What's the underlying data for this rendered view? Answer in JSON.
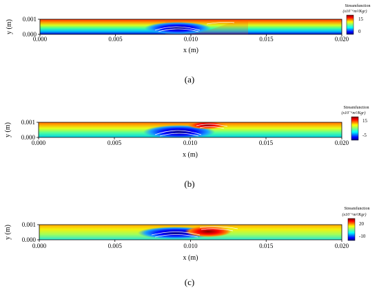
{
  "figure": {
    "panels": [
      {
        "caption": "(a)",
        "xlabel": "x (m)",
        "ylabel": "y (m)",
        "xticks": [
          "0.000",
          "0.005",
          "0.010",
          "0.015",
          "0.020"
        ],
        "yticks": [
          "0.000",
          "0.001"
        ],
        "colorbar": {
          "title": "Streamfunction",
          "units": "(x10⁻⁶m²/Kgr)",
          "ticks": [
            "15",
            "0"
          ]
        }
      },
      {
        "caption": "(b)",
        "xlabel": "x (m)",
        "ylabel": "y (m)",
        "xticks": [
          "0.000",
          "0.005",
          "0.010",
          "0.015",
          "0.020"
        ],
        "yticks": [
          "0.000",
          "0.001"
        ],
        "colorbar": {
          "title": "Streamfunction",
          "units": "(x10⁻⁶m²/Kgr)",
          "ticks": [
            "15",
            "-5"
          ]
        }
      },
      {
        "caption": "(c)",
        "xlabel": "x (m)",
        "ylabel": "y (m)",
        "xticks": [
          "0.000",
          "0.005",
          "0.010",
          "0.015",
          "0.020"
        ],
        "yticks": [
          "0.000",
          "0.001"
        ],
        "colorbar": {
          "title": "Streamfunction",
          "units": "(x10⁻⁶m²/Kgr)",
          "ticks": [
            "20",
            "-10"
          ]
        }
      }
    ]
  },
  "chart_data": [
    {
      "type": "heatmap",
      "xlim": [
        0.0,
        0.02
      ],
      "ylim": [
        0.0,
        0.001
      ],
      "xlabel": "x (m)",
      "ylabel": "y (m)",
      "colorbar_ticks": [
        15,
        0
      ],
      "colormap": "jet",
      "features": [
        {
          "kind": "vortex",
          "sign": "negative",
          "x_center": 0.009,
          "y_center": 0.0003
        }
      ]
    },
    {
      "type": "heatmap",
      "xlim": [
        0.0,
        0.02
      ],
      "ylim": [
        0.0,
        0.001
      ],
      "xlabel": "x (m)",
      "ylabel": "y (m)",
      "colorbar_ticks": [
        15,
        -5
      ],
      "colormap": "jet",
      "features": [
        {
          "kind": "vortex",
          "sign": "negative",
          "x_center": 0.009,
          "y_center": 0.0003
        },
        {
          "kind": "vortex",
          "sign": "positive",
          "x_center": 0.0112,
          "y_center": 0.0008
        }
      ]
    },
    {
      "type": "heatmap",
      "xlim": [
        0.0,
        0.02
      ],
      "ylim": [
        0.0,
        0.001
      ],
      "xlabel": "x (m)",
      "ylabel": "y (m)",
      "colorbar_ticks": [
        20,
        -10
      ],
      "colormap": "jet",
      "features": [
        {
          "kind": "vortex",
          "sign": "negative",
          "x_center": 0.009,
          "y_center": 0.0004
        },
        {
          "kind": "vortex",
          "sign": "positive",
          "x_center": 0.0112,
          "y_center": 0.0006
        }
      ]
    }
  ]
}
